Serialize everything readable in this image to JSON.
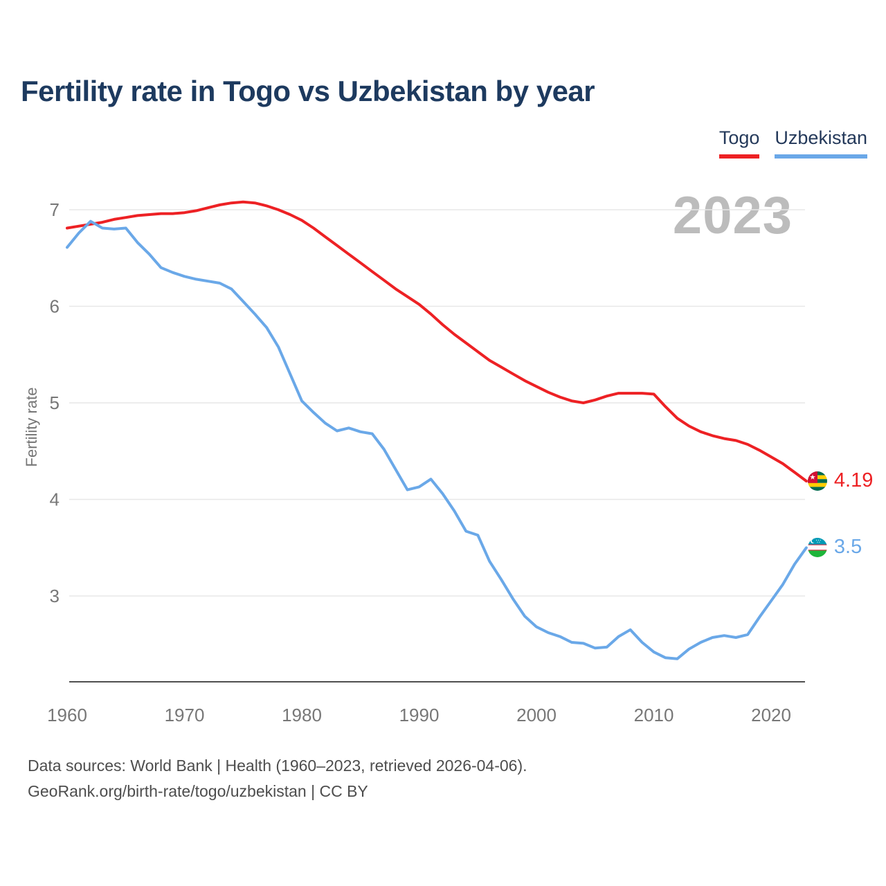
{
  "title": "Fertility rate in Togo vs Uzbekistan by year",
  "watermark": "2023",
  "legend": [
    {
      "label": "Togo",
      "color": "#ed2124"
    },
    {
      "label": "Uzbekistan",
      "color": "#6aa8e8"
    }
  ],
  "end_labels": {
    "togo": "4.19",
    "uzbekistan": "3.5"
  },
  "footer": {
    "line1": "Data sources: World Bank | Health (1960–2023, retrieved 2026-04-06).",
    "line2": "GeoRank.org/birth-rate/togo/uzbekistan | CC BY"
  },
  "icons": {
    "togo_flag": "togo-flag-icon",
    "uzbekistan_flag": "uzbekistan-flag-icon"
  },
  "chart_data": {
    "type": "line",
    "title": "Fertility rate in Togo vs Uzbekistan by year",
    "xlabel": "",
    "ylabel": "Fertility rate",
    "grid": true,
    "legend_position": "top-right",
    "xticks": [
      1960,
      1970,
      1980,
      1990,
      2000,
      2010,
      2020
    ],
    "yticks": [
      3,
      4,
      5,
      6,
      7
    ],
    "ylim": [
      2.11,
      7.3
    ],
    "xlim": [
      1960,
      2023
    ],
    "x": [
      1960,
      1961,
      1962,
      1963,
      1964,
      1965,
      1966,
      1967,
      1968,
      1969,
      1970,
      1971,
      1972,
      1973,
      1974,
      1975,
      1976,
      1977,
      1978,
      1979,
      1980,
      1981,
      1982,
      1983,
      1984,
      1985,
      1986,
      1987,
      1988,
      1989,
      1990,
      1991,
      1992,
      1993,
      1994,
      1995,
      1996,
      1997,
      1998,
      1999,
      2000,
      2001,
      2002,
      2003,
      2004,
      2005,
      2006,
      2007,
      2008,
      2009,
      2010,
      2011,
      2012,
      2013,
      2014,
      2015,
      2016,
      2017,
      2018,
      2019,
      2020,
      2021,
      2022,
      2023
    ],
    "series": [
      {
        "name": "Togo",
        "color": "#ed2124",
        "end_value_label": "4.19",
        "values": [
          6.81,
          6.83,
          6.85,
          6.87,
          6.9,
          6.92,
          6.94,
          6.95,
          6.96,
          6.96,
          6.97,
          6.99,
          7.02,
          7.05,
          7.07,
          7.08,
          7.07,
          7.04,
          7.0,
          6.95,
          6.89,
          6.81,
          6.72,
          6.63,
          6.54,
          6.45,
          6.36,
          6.27,
          6.18,
          6.1,
          6.02,
          5.92,
          5.81,
          5.71,
          5.62,
          5.53,
          5.44,
          5.37,
          5.3,
          5.23,
          5.17,
          5.11,
          5.06,
          5.02,
          5.0,
          5.03,
          5.07,
          5.1,
          5.1,
          5.1,
          5.09,
          4.96,
          4.84,
          4.76,
          4.7,
          4.66,
          4.63,
          4.61,
          4.57,
          4.51,
          4.44,
          4.37,
          4.28,
          4.19
        ]
      },
      {
        "name": "Uzbekistan",
        "color": "#6aa8e8",
        "end_value_label": "3.5",
        "values": [
          6.61,
          6.76,
          6.88,
          6.81,
          6.8,
          6.81,
          6.66,
          6.54,
          6.4,
          6.35,
          6.31,
          6.28,
          6.26,
          6.24,
          6.18,
          6.05,
          5.92,
          5.78,
          5.58,
          5.3,
          5.02,
          4.9,
          4.79,
          4.71,
          4.74,
          4.7,
          4.68,
          4.52,
          4.31,
          4.1,
          4.13,
          4.21,
          4.06,
          3.88,
          3.67,
          3.63,
          3.36,
          3.17,
          2.97,
          2.79,
          2.68,
          2.62,
          2.58,
          2.52,
          2.51,
          2.46,
          2.47,
          2.58,
          2.65,
          2.52,
          2.42,
          2.36,
          2.35,
          2.45,
          2.52,
          2.57,
          2.59,
          2.57,
          2.6,
          2.78,
          2.95,
          3.12,
          3.33,
          3.5
        ]
      }
    ]
  }
}
